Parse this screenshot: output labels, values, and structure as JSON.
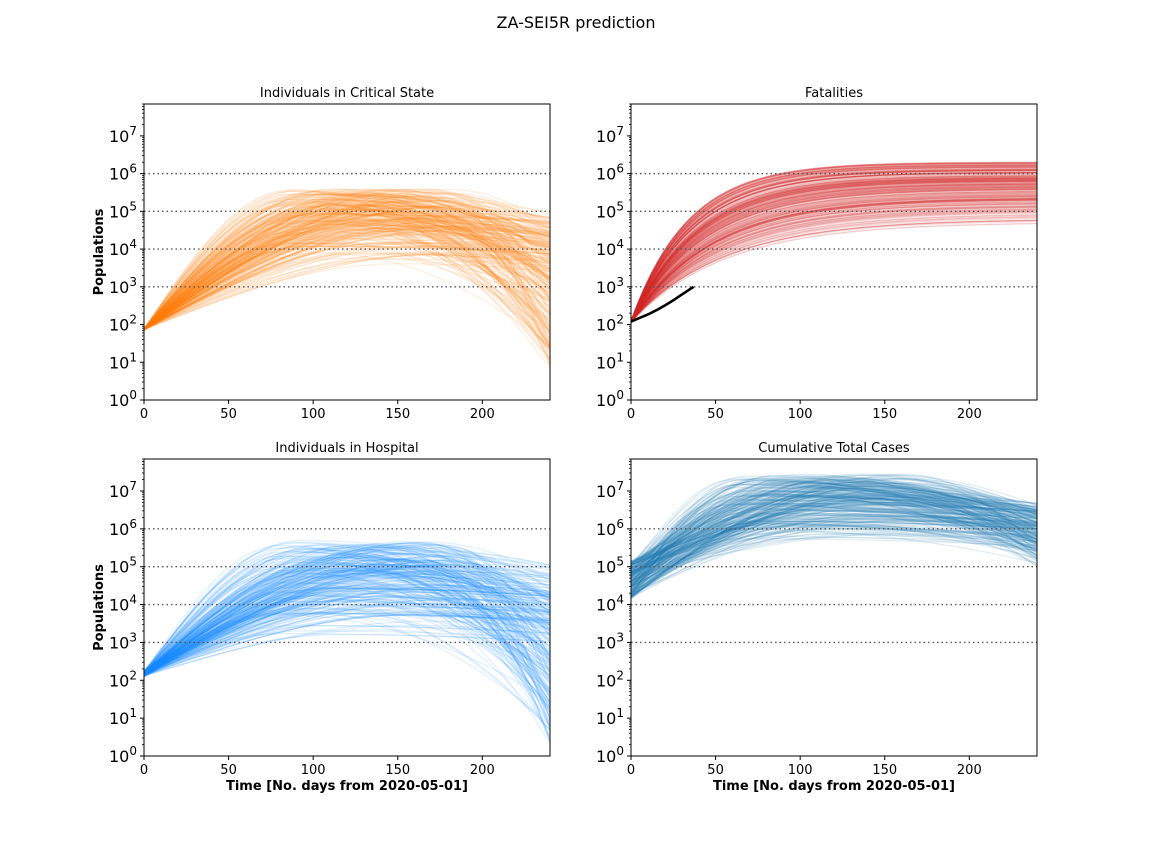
{
  "figure": {
    "title": "ZA-SEI5R prediction"
  },
  "chart_data": [
    {
      "type": "line",
      "title": "Individuals in Critical State",
      "xlabel": "",
      "ylabel": "Populations",
      "xlim": [
        0,
        240
      ],
      "ylim": [
        1,
        70000000
      ],
      "yscale": "log",
      "xticks": [
        0,
        50,
        100,
        150,
        200
      ],
      "yticks": [
        1,
        10,
        100,
        1000,
        10000,
        100000,
        1000000,
        10000000
      ],
      "hlines": [
        1000,
        10000,
        100000,
        1000000
      ],
      "color": "#ff7f0e",
      "ensemble": {
        "count": 260,
        "start_log10": [
          1.85,
          1.9
        ],
        "peak_day": [
          85,
          185
        ],
        "peak_log10": [
          3.6,
          5.6
        ],
        "end_log10": [
          0.8,
          5.0
        ]
      },
      "series": []
    },
    {
      "type": "line",
      "title": "Fatalities",
      "xlabel": "",
      "ylabel": "",
      "xlim": [
        0,
        240
      ],
      "ylim": [
        1,
        70000000
      ],
      "yscale": "log",
      "xticks": [
        0,
        50,
        100,
        150,
        200
      ],
      "yticks": [
        1,
        10,
        100,
        1000,
        10000,
        100000,
        1000000,
        10000000
      ],
      "hlines": [
        1000,
        10000,
        100000,
        1000000
      ],
      "color": "#d62728",
      "ensemble": {
        "count": 260,
        "start_log10": [
          2.05,
          2.1
        ],
        "peak_day": [
          240,
          240
        ],
        "peak_log10": [
          4.6,
          6.3
        ],
        "end_log10": [
          4.6,
          6.3
        ],
        "cumulative": true
      },
      "series": [
        {
          "name": "",
          "color": "#000000",
          "x": [
            0,
            5,
            10,
            15,
            20,
            25,
            30,
            37
          ],
          "y": [
            120,
            150,
            185,
            240,
            320,
            440,
            620,
            1000
          ]
        }
      ]
    },
    {
      "type": "line",
      "title": "Individuals in Hospital",
      "xlabel": "Time [No. days from 2020-05-01]",
      "ylabel": "Populations",
      "xlim": [
        0,
        240
      ],
      "ylim": [
        1,
        70000000
      ],
      "yscale": "log",
      "xticks": [
        0,
        50,
        100,
        150,
        200
      ],
      "yticks": [
        1,
        10,
        100,
        1000,
        10000,
        100000,
        1000000,
        10000000
      ],
      "hlines": [
        1000,
        10000,
        100000,
        1000000
      ],
      "color": "#1e8fff",
      "ensemble": {
        "count": 260,
        "start_log10": [
          2.1,
          2.25
        ],
        "peak_day": [
          80,
          185
        ],
        "peak_log10": [
          3.2,
          5.7
        ],
        "end_log10": [
          0.2,
          5.1
        ]
      },
      "series": []
    },
    {
      "type": "line",
      "title": "Cumulative Total Cases",
      "xlabel": "Time [No. days from 2020-05-01]",
      "ylabel": "",
      "xlim": [
        0,
        240
      ],
      "ylim": [
        1,
        70000000
      ],
      "yscale": "log",
      "xticks": [
        0,
        50,
        100,
        150,
        200
      ],
      "yticks": [
        1,
        10,
        100,
        1000,
        10000,
        100000,
        1000000,
        10000000
      ],
      "hlines": [
        1000,
        10000,
        100000,
        1000000
      ],
      "color": "#1f77b4",
      "ensemble": {
        "count": 260,
        "start_log10": [
          4.15,
          5.15
        ],
        "peak_day": [
          60,
          165
        ],
        "peak_log10": [
          5.7,
          7.45
        ],
        "end_log10": [
          5.0,
          6.7
        ]
      },
      "series": []
    }
  ]
}
